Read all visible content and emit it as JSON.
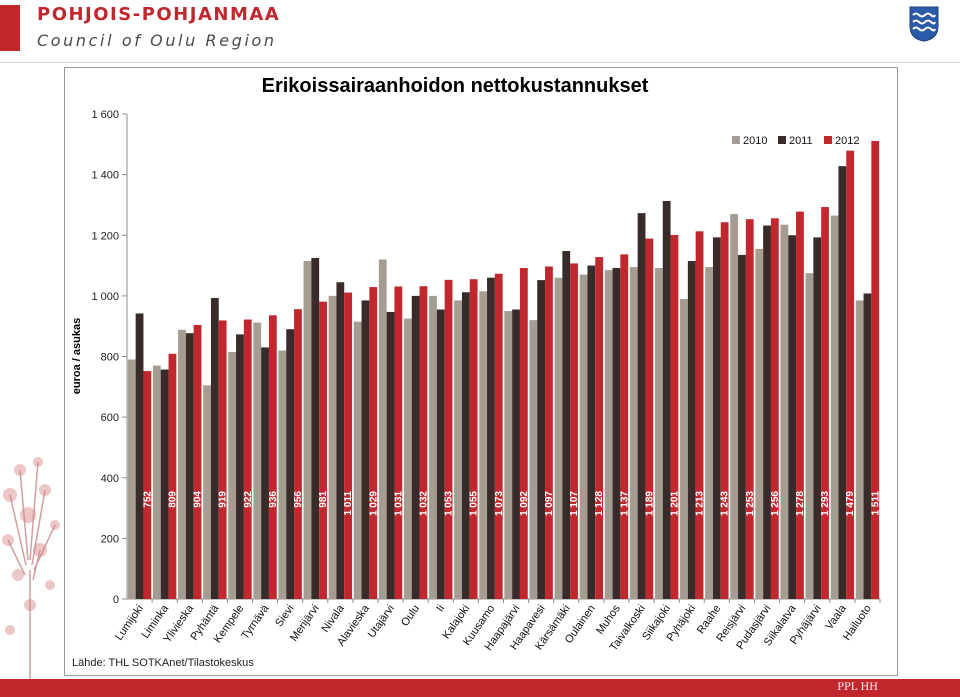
{
  "header": {
    "org_name": "POHJOIS-POHJANMAA",
    "org_subtitle": "Council of Oulu Region"
  },
  "footer": {
    "text": "PPL HH"
  },
  "colors": {
    "accent": "#c1272d",
    "s2010": "#a59d92",
    "s2011": "#3a2b2b",
    "s2012": "#c1272d"
  },
  "chart_data": {
    "type": "bar",
    "title": "Erikoissairaanhoidon nettokustannukset",
    "ylabel": "euroa / asukas",
    "xlabel": "",
    "ylim": [
      0,
      1600
    ],
    "yticks": [
      0,
      200,
      400,
      600,
      800,
      1000,
      1200,
      1400,
      1600
    ],
    "ytick_labels": [
      "0",
      "200",
      "400",
      "600",
      "800",
      "1 000",
      "1 200",
      "1 400",
      "1 600"
    ],
    "legend_position": "top-right",
    "grid": false,
    "source": "Lähde: THL SOTKAnet/Tilastokeskus",
    "categories": [
      "Lumijoki",
      "Liminka",
      "Ylivieska",
      "Pyhäntä",
      "Kempele",
      "Tyrnävä",
      "Sievi",
      "Merijärvi",
      "Nivala",
      "Alavieska",
      "Utajärvi",
      "Oulu",
      "Ii",
      "Kalajoki",
      "Kuusamo",
      "Haapajärvi",
      "Haapavesi",
      "Kärsämäki",
      "Oulainen",
      "Muhos",
      "Taivalkoski",
      "Siikajoki",
      "Pyhäjoki",
      "Raahe",
      "Reisjärvi",
      "Pudasjärvi",
      "Siikalatva",
      "Pyhäjärvi",
      "Vaala",
      "Hailuoto"
    ],
    "series": [
      {
        "name": "2010",
        "values": [
          790,
          770,
          888,
          705,
          815,
          912,
          820,
          1115,
          1000,
          915,
          1120,
          925,
          1000,
          985,
          1015,
          950,
          920,
          1060,
          1070,
          1085,
          1095,
          1092,
          990,
          1095,
          1270,
          1155,
          1235,
          1075,
          1265,
          985
        ]
      },
      {
        "name": "2011",
        "values": [
          942,
          757,
          877,
          993,
          873,
          830,
          890,
          1125,
          1045,
          985,
          947,
          1000,
          955,
          1012,
          1060,
          955,
          1052,
          1148,
          1100,
          1092,
          1273,
          1313,
          1115,
          1193,
          1135,
          1232,
          1200,
          1193,
          1428,
          1008
        ]
      },
      {
        "name": "2012",
        "values": [
          752,
          809,
          904,
          919,
          922,
          936,
          956,
          981,
          1011,
          1029,
          1031,
          1032,
          1053,
          1055,
          1073,
          1092,
          1097,
          1107,
          1128,
          1137,
          1189,
          1201,
          1213,
          1243,
          1253,
          1256,
          1278,
          1293,
          1479,
          1511
        ]
      }
    ],
    "data_labels_2012": [
      "752",
      "809",
      "904",
      "919",
      "922",
      "936",
      "956",
      "981",
      "1 011",
      "1 029",
      "1 031",
      "1 032",
      "1 053",
      "1 055",
      "1 073",
      "1 092",
      "1 097",
      "1 107",
      "1 128",
      "1 137",
      "1 189",
      "1 201",
      "1 213",
      "1 243",
      "1 253",
      "1 256",
      "1 278",
      "1 293",
      "1 479",
      "1 511"
    ]
  }
}
